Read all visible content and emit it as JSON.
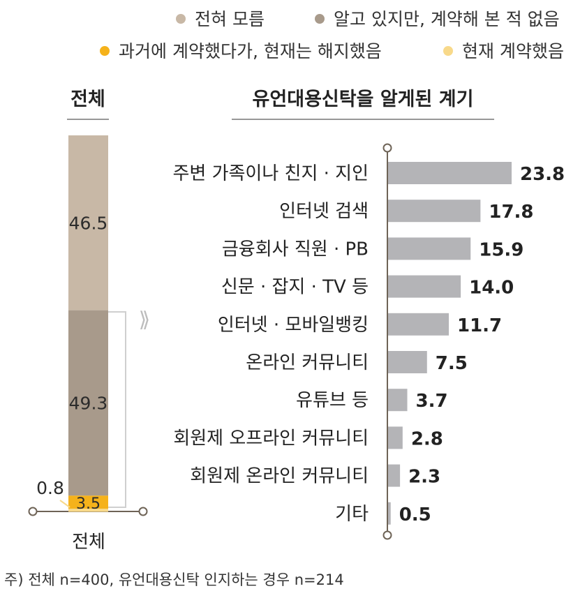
{
  "legend": [
    {
      "label": "전혀 모름",
      "color": "#c8b8a6"
    },
    {
      "label": "알고 있지만, 계약해 본 적 없음",
      "color": "#a89a8b"
    },
    {
      "label": "과거에 계약했다가, 현재는 해지했음",
      "color": "#f5b21b"
    },
    {
      "label": "현재 계약했음",
      "color": "#f8d98a"
    }
  ],
  "chart_data": [
    {
      "type": "bar",
      "stacked": true,
      "title": "전체",
      "categories": [
        "전체"
      ],
      "series": [
        {
          "name": "전혀 모름",
          "values": [
            46.5
          ],
          "color": "#c8b8a6"
        },
        {
          "name": "알고 있지만, 계약해 본 적 없음",
          "values": [
            49.3
          ],
          "color": "#a89a8b"
        },
        {
          "name": "과거에 계약했다가, 현재는 해지했음",
          "values": [
            3.5
          ],
          "color": "#f5b21b"
        },
        {
          "name": "현재 계약했음",
          "values": [
            0.8
          ],
          "color": "#f8d98a"
        }
      ],
      "data_labels": [
        "46.5",
        "49.3",
        "3.5",
        "0.8"
      ],
      "ylim": [
        0,
        100
      ]
    },
    {
      "type": "bar",
      "orientation": "horizontal",
      "title": "유언대용신탁을 알게된 계기",
      "categories": [
        "주변 가족이나 친지 · 지인",
        "인터넷 검색",
        "금융회사 직원 · PB",
        "신문 · 잡지 · TV 등",
        "인터넷 · 모바일뱅킹",
        "온라인 커뮤니티",
        "유튜브 등",
        "회원제 오프라인 커뮤니티",
        "회원제 온라인 커뮤니티",
        "기타"
      ],
      "values": [
        23.8,
        17.8,
        15.9,
        14.0,
        11.7,
        7.5,
        3.7,
        2.8,
        2.3,
        0.5
      ],
      "data_labels": [
        "23.8",
        "17.8",
        "15.9",
        "14.0",
        "11.7",
        "7.5",
        "3.7",
        "2.8",
        "2.3",
        "0.5"
      ],
      "bar_color": "#b4b4b7",
      "xlim": [
        0,
        25
      ]
    }
  ],
  "footnote": "주) 전체 n=400, 유언대용신탁 인지하는 경우 n=214",
  "arrow_glyph": "⟫"
}
